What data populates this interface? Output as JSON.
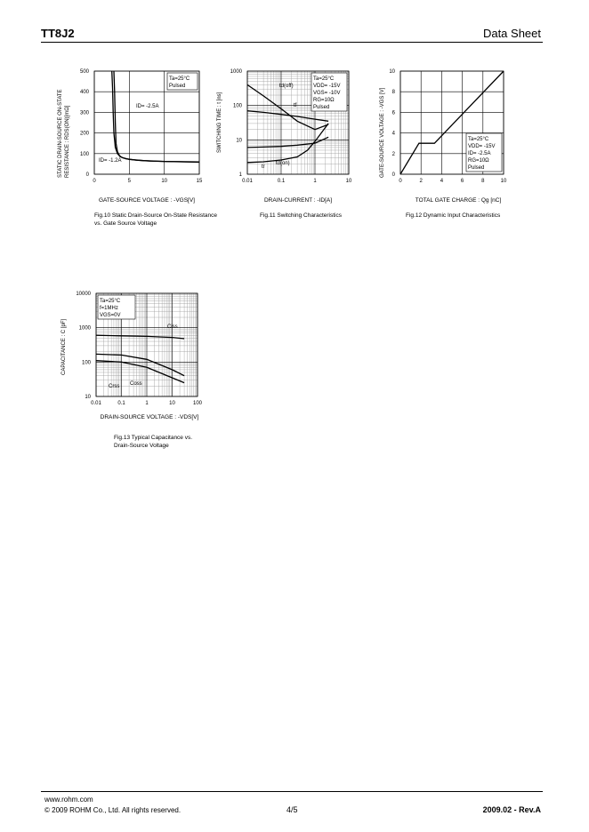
{
  "header": {
    "part": "TT8J2",
    "doc": "Data Sheet"
  },
  "footer": {
    "site": "www.rohm.com",
    "copyright": "© 2009 ROHM Co., Ltd. All rights reserved.",
    "page": "4/5",
    "rev": "2009.02  -  Rev.A"
  },
  "chart_data": [
    {
      "type": "line",
      "caption": "Fig.10  Static Drain-Source On-State Resistance vs. Gate Source Voltage",
      "ylabel": "STATIC DRAIN-SOURCE ON-STATE RESISTANCE : RDS(ON)[mΩ]",
      "xlabel": "GATE-SOURCE VOLTAGE : -VGS[V]",
      "xlim": [
        0,
        15
      ],
      "ylim": [
        0,
        500
      ],
      "xticks": [
        0,
        5,
        10,
        15
      ],
      "yticks": [
        0,
        100,
        200,
        300,
        400,
        500
      ],
      "legend": [
        "Ta=25°C",
        "Pulsed"
      ],
      "annotations": [
        "ID= -2.5A",
        "ID= -1.2A"
      ],
      "series": [
        {
          "name": "ID= -2.5A",
          "x": [
            2.5,
            2.6,
            2.7,
            2.8,
            3.0,
            3.3,
            3.7,
            4.5,
            6,
            8,
            10,
            12,
            15
          ],
          "y": [
            500,
            420,
            300,
            200,
            130,
            100,
            85,
            75,
            68,
            64,
            62,
            61,
            60
          ]
        },
        {
          "name": "ID= -1.2A",
          "x": [
            2.8,
            2.9,
            3.0,
            3.1,
            3.3,
            3.6,
            4,
            5,
            7,
            10,
            15
          ],
          "y": [
            500,
            400,
            250,
            150,
            110,
            90,
            80,
            72,
            66,
            62,
            58
          ]
        }
      ]
    },
    {
      "type": "line",
      "caption": "Fig.11  Switching Characteristics",
      "ylabel": "SWITCHING  TIME : t [ns]",
      "xlabel": "DRAIN-CURRENT : -ID[A]",
      "xscale": "log",
      "yscale": "log",
      "xlim": [
        0.01,
        10
      ],
      "ylim": [
        1,
        1000
      ],
      "xticks": [
        "0.01",
        "0.1",
        "1",
        "10"
      ],
      "yticks": [
        "1",
        "10",
        "100",
        "1000"
      ],
      "legend": [
        "Ta=25°C",
        "VDD= -15V",
        "VGS= -10V",
        "RG=10Ω",
        "Pulsed"
      ],
      "series": [
        {
          "name": "td(off)",
          "x": [
            0.01,
            0.03,
            0.1,
            0.3,
            1,
            2.5
          ],
          "y": [
            70,
            63,
            55,
            48,
            40,
            35
          ]
        },
        {
          "name": "tf",
          "x": [
            0.01,
            0.03,
            0.1,
            0.3,
            1,
            2.5
          ],
          "y": [
            400,
            190,
            80,
            35,
            20,
            28
          ]
        },
        {
          "name": "tr",
          "x": [
            0.01,
            0.03,
            0.1,
            0.3,
            0.6,
            1,
            2.5
          ],
          "y": [
            2.2,
            2.3,
            2.6,
            3.2,
            5,
            9,
            30
          ]
        },
        {
          "name": "td(on)",
          "x": [
            0.01,
            0.03,
            0.1,
            0.3,
            1,
            2.5
          ],
          "y": [
            6,
            6.2,
            6.5,
            7,
            8,
            12
          ]
        }
      ]
    },
    {
      "type": "line",
      "caption": "Fig.12  Dynamic Input Characteristics",
      "ylabel": "GATE-SOURCE VOLTAGE : -VGS [V]",
      "xlabel": "TOTAL GATE CHARGE : Qg  [nC]",
      "xlim": [
        0,
        10
      ],
      "ylim": [
        0,
        10
      ],
      "xticks": [
        0,
        2,
        4,
        6,
        8,
        10
      ],
      "yticks": [
        0,
        2,
        4,
        6,
        8,
        10
      ],
      "legend": [
        "Ta=25°C",
        "VDD= -15V",
        "ID= -2.5A",
        "RG=10Ω",
        "Pulsed"
      ],
      "series": [
        {
          "name": "VGS",
          "x": [
            0,
            1.8,
            3.3,
            10
          ],
          "y": [
            0,
            3,
            3,
            10
          ]
        }
      ]
    },
    {
      "type": "line",
      "caption": "Fig.13  Typical Capacitance vs. Drain-Source Voltage",
      "ylabel": "CAPACITANCE : C [pF]",
      "xlabel": "DRAIN-SOURCE VOLTAGE : -VDS[V]",
      "xscale": "log",
      "yscale": "log",
      "xlim": [
        0.01,
        100
      ],
      "ylim": [
        10,
        10000
      ],
      "xticks": [
        "0.01",
        "0.1",
        "1",
        "10",
        "100"
      ],
      "yticks": [
        "10",
        "100",
        "1000",
        "10000"
      ],
      "legend": [
        "Ta=25°C",
        "f=1MHz",
        "VGS=0V"
      ],
      "series": [
        {
          "name": "Ciss",
          "x": [
            0.01,
            0.1,
            1,
            10,
            30
          ],
          "y": [
            600,
            580,
            560,
            520,
            480
          ]
        },
        {
          "name": "Coss",
          "x": [
            0.01,
            0.1,
            1,
            10,
            30
          ],
          "y": [
            170,
            160,
            120,
            60,
            40
          ]
        },
        {
          "name": "Crss",
          "x": [
            0.01,
            0.1,
            1,
            10,
            30
          ],
          "y": [
            110,
            100,
            70,
            35,
            25
          ]
        }
      ]
    }
  ]
}
